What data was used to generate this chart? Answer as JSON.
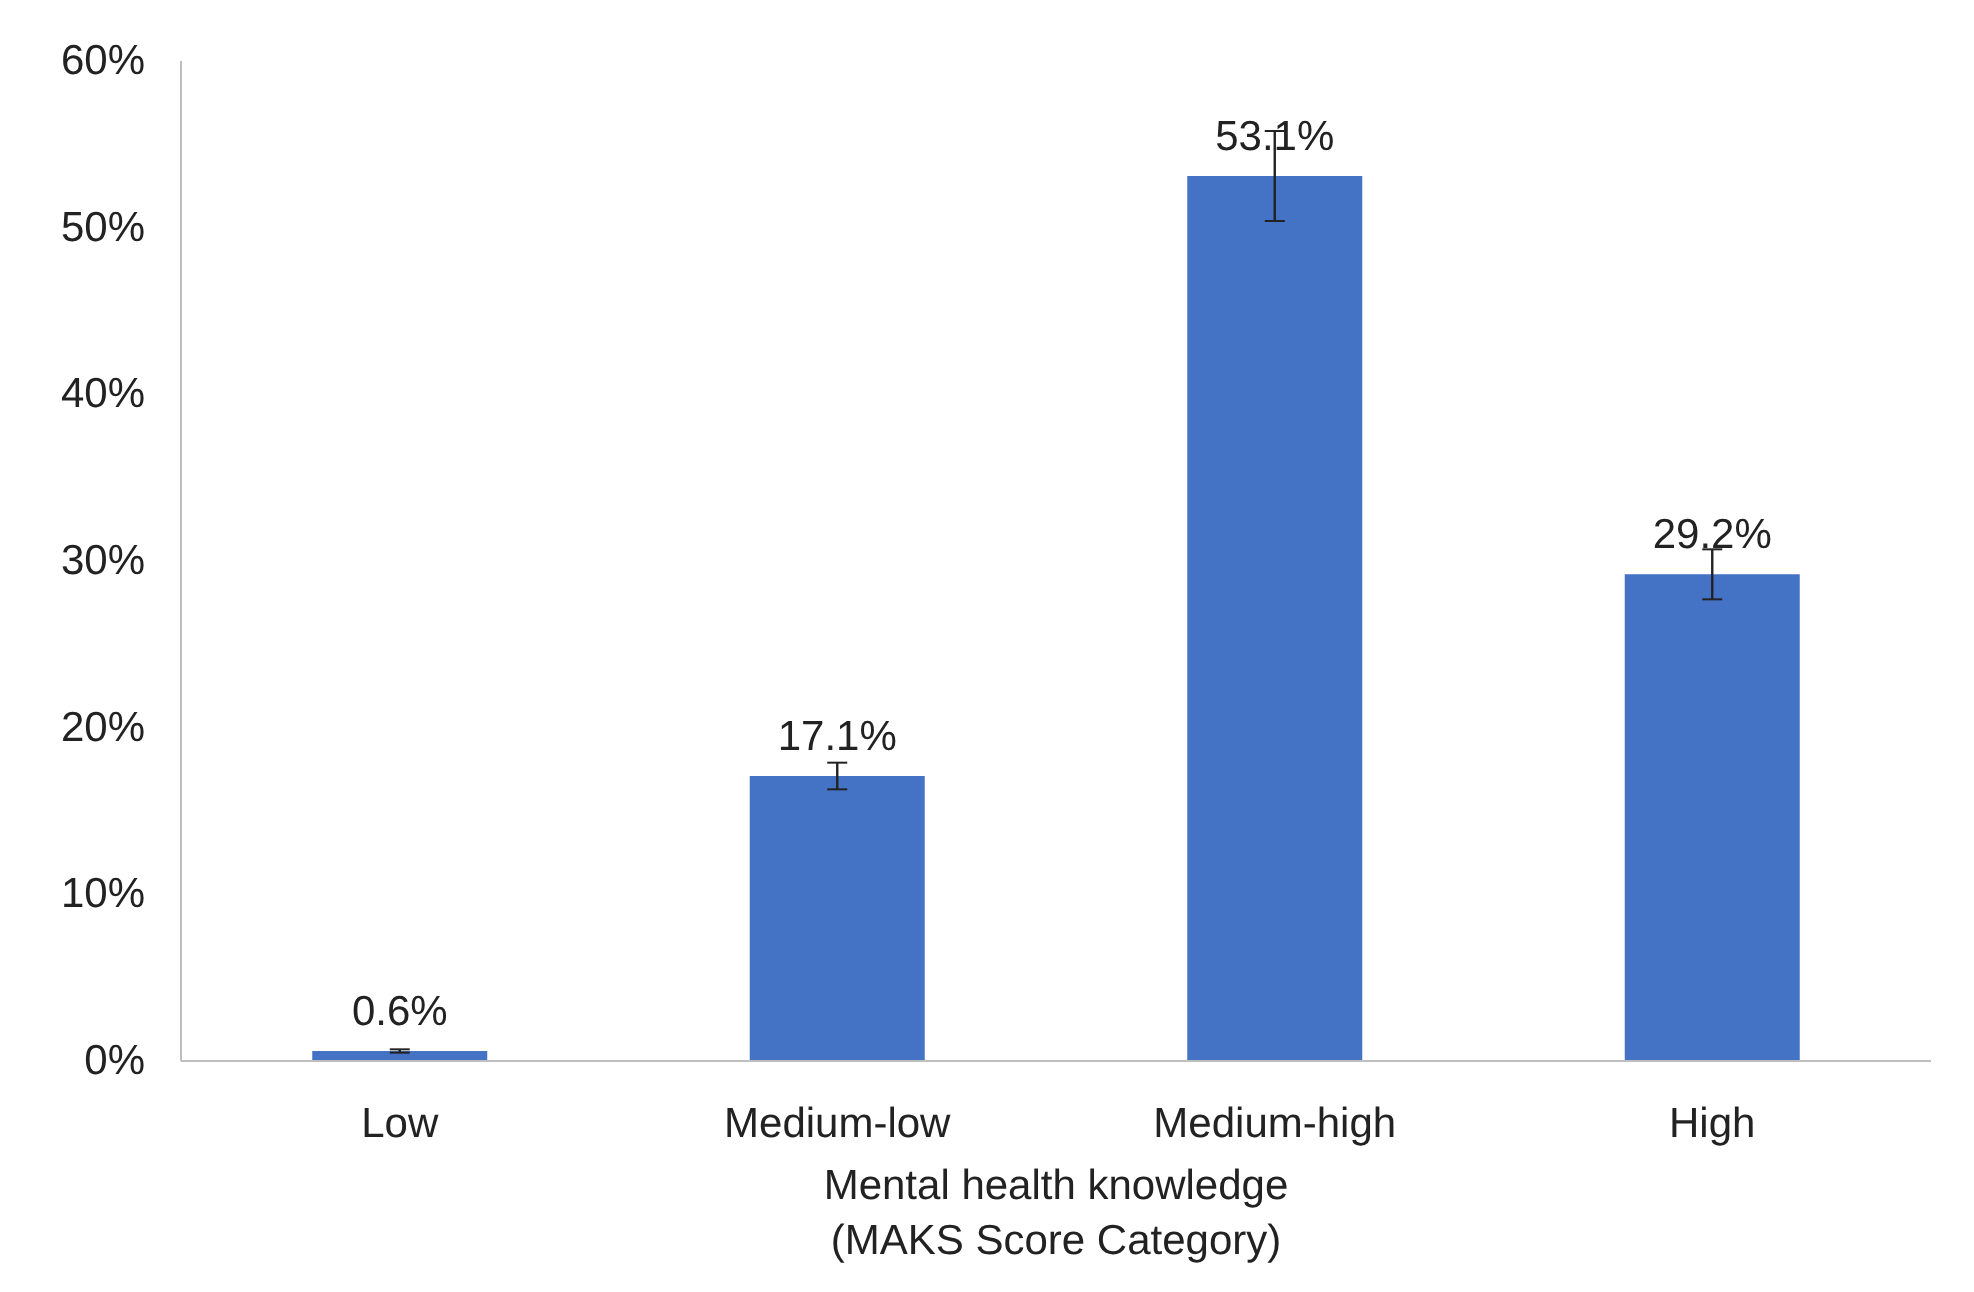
{
  "chart_data": {
    "type": "bar",
    "xlabel": "Mental health knowledge\n(MAKS Score Category)",
    "categories": [
      "Low",
      "Medium-low",
      "Medium-high",
      "High"
    ],
    "values": [
      0.6,
      17.1,
      53.1,
      29.2
    ],
    "errors": [
      0.1,
      0.8,
      2.7,
      1.5
    ],
    "value_labels": [
      "0.6%",
      "17.1%",
      "53.1%",
      "29.2%"
    ],
    "color": "#4472c4",
    "ylim": [
      0,
      60
    ],
    "yticks": [
      {
        "value": 0,
        "label": "0%"
      },
      {
        "value": 10,
        "label": "10%"
      },
      {
        "value": 20,
        "label": "20%"
      },
      {
        "value": 30,
        "label": "30%"
      },
      {
        "value": 40,
        "label": "40%"
      },
      {
        "value": 50,
        "label": "50%"
      },
      {
        "value": 60,
        "label": "60%"
      }
    ],
    "grid": false
  }
}
